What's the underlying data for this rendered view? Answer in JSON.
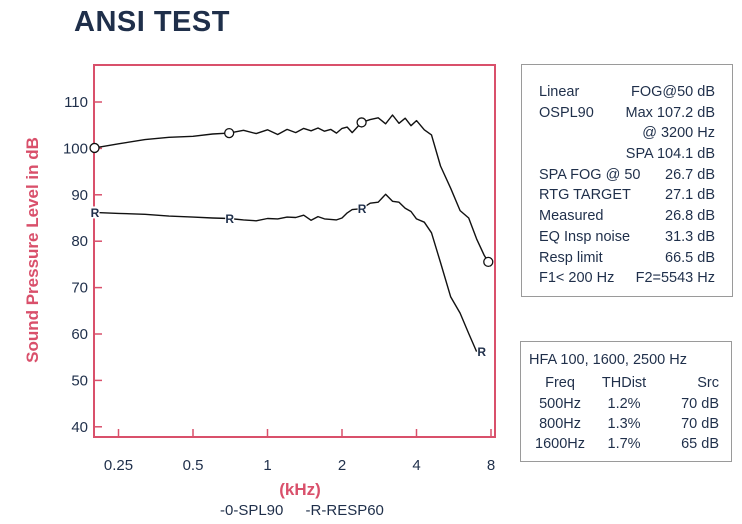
{
  "title": "ANSI TEST",
  "chart_data": {
    "type": "line",
    "title": "ANSI TEST",
    "xlabel": "(kHz)",
    "ylabel": "Sound Pressure Level in dB",
    "x_scale": "log",
    "xlim": [
      0.2,
      8
    ],
    "ylim": [
      40,
      120
    ],
    "x_ticks": [
      0.25,
      0.5,
      1,
      2,
      4,
      8
    ],
    "x_tick_labels": [
      "0.25",
      "0.5",
      "1",
      "2",
      "4",
      "8"
    ],
    "y_ticks": [
      40,
      50,
      60,
      70,
      80,
      90,
      100,
      110
    ],
    "y_tick_labels": [
      "40",
      "50",
      "60",
      "70",
      "80",
      "90",
      "100",
      "110"
    ],
    "grid": false,
    "series": [
      {
        "name": "-0-SPL90",
        "marker": "O",
        "x": [
          0.2,
          0.25,
          0.32,
          0.4,
          0.5,
          0.6,
          0.7,
          0.8,
          0.9,
          1.0,
          1.1,
          1.2,
          1.3,
          1.4,
          1.5,
          1.6,
          1.7,
          1.8,
          1.9,
          2.0,
          2.1,
          2.2,
          2.4,
          2.6,
          2.8,
          3.0,
          3.2,
          3.4,
          3.6,
          3.8,
          4.0,
          4.3,
          4.6,
          5.0,
          5.5,
          6.0,
          6.5,
          7.0,
          7.5,
          8.0
        ],
        "values": [
          100.1,
          101.0,
          101.9,
          102.4,
          102.6,
          103.1,
          103.3,
          103.9,
          103.2,
          104.0,
          103.0,
          104.1,
          103.4,
          104.3,
          103.8,
          104.4,
          103.7,
          104.1,
          103.3,
          104.3,
          104.6,
          103.4,
          105.6,
          106.2,
          106.6,
          105.3,
          107.2,
          105.4,
          106.5,
          104.9,
          106.0,
          104.0,
          102.9,
          96.2,
          91.4,
          86.6,
          85.0,
          80.5,
          77.0,
          74.6
        ],
        "marker_x": [
          0.2,
          0.7,
          2.4,
          7.8
        ]
      },
      {
        "name": "-R-RESP60",
        "marker": "R",
        "x": [
          0.2,
          0.25,
          0.32,
          0.4,
          0.5,
          0.6,
          0.7,
          0.8,
          0.9,
          1.0,
          1.1,
          1.2,
          1.3,
          1.4,
          1.5,
          1.6,
          1.7,
          1.8,
          1.9,
          2.0,
          2.1,
          2.2,
          2.4,
          2.6,
          2.8,
          3.0,
          3.2,
          3.4,
          3.6,
          3.8,
          4.0,
          4.3,
          4.6,
          5.0,
          5.5,
          6.0,
          6.5,
          7.0
        ],
        "values": [
          86.2,
          86.0,
          85.8,
          85.4,
          85.2,
          85.0,
          84.9,
          84.6,
          84.4,
          84.9,
          84.8,
          85.2,
          85.1,
          85.6,
          84.5,
          85.3,
          84.8,
          84.7,
          84.6,
          85.0,
          86.1,
          86.8,
          87.0,
          88.2,
          88.4,
          90.1,
          88.6,
          88.4,
          87.1,
          86.4,
          84.8,
          84.1,
          81.8,
          75.4,
          68.0,
          64.5,
          60.1,
          56.2
        ],
        "marker_x": [
          0.2,
          0.7,
          2.4,
          7.3
        ]
      }
    ],
    "legend": [
      "-0-SPL90",
      "-R-RESP60"
    ],
    "legend_position": "bottom"
  },
  "stats": [
    {
      "left": "Linear",
      "right": "FOG@50 dB"
    },
    {
      "left": "OSPL90",
      "right": "Max 107.2 dB"
    },
    {
      "left": "",
      "right": "@ 3200 Hz"
    },
    {
      "left": "",
      "right": "SPA 104.1 dB"
    },
    {
      "left": "SPA FOG @ 50",
      "right": "26.7 dB"
    },
    {
      "left": "RTG TARGET",
      "right": "27.1 dB"
    },
    {
      "left": "Measured",
      "right": "26.8 dB"
    },
    {
      "left": "EQ Insp noise",
      "right": "31.3 dB"
    },
    {
      "left": "Resp limit",
      "right": "66.5 dB"
    },
    {
      "left": "F1< 200 Hz",
      "right": "F2=5543 Hz"
    }
  ],
  "hfa": {
    "title": "HFA 100, 1600, 2500 Hz",
    "headers": [
      "Freq",
      "THDist",
      "Src"
    ],
    "rows": [
      [
        "500Hz",
        "1.2%",
        "70 dB"
      ],
      [
        "800Hz",
        "1.3%",
        "70 dB"
      ],
      [
        "1600Hz",
        "1.7%",
        "65 dB"
      ]
    ]
  },
  "colors": {
    "frame": "#d9506b",
    "text": "#1f2f4a",
    "curve": "#111111",
    "box_border": "#9a9a9a"
  }
}
